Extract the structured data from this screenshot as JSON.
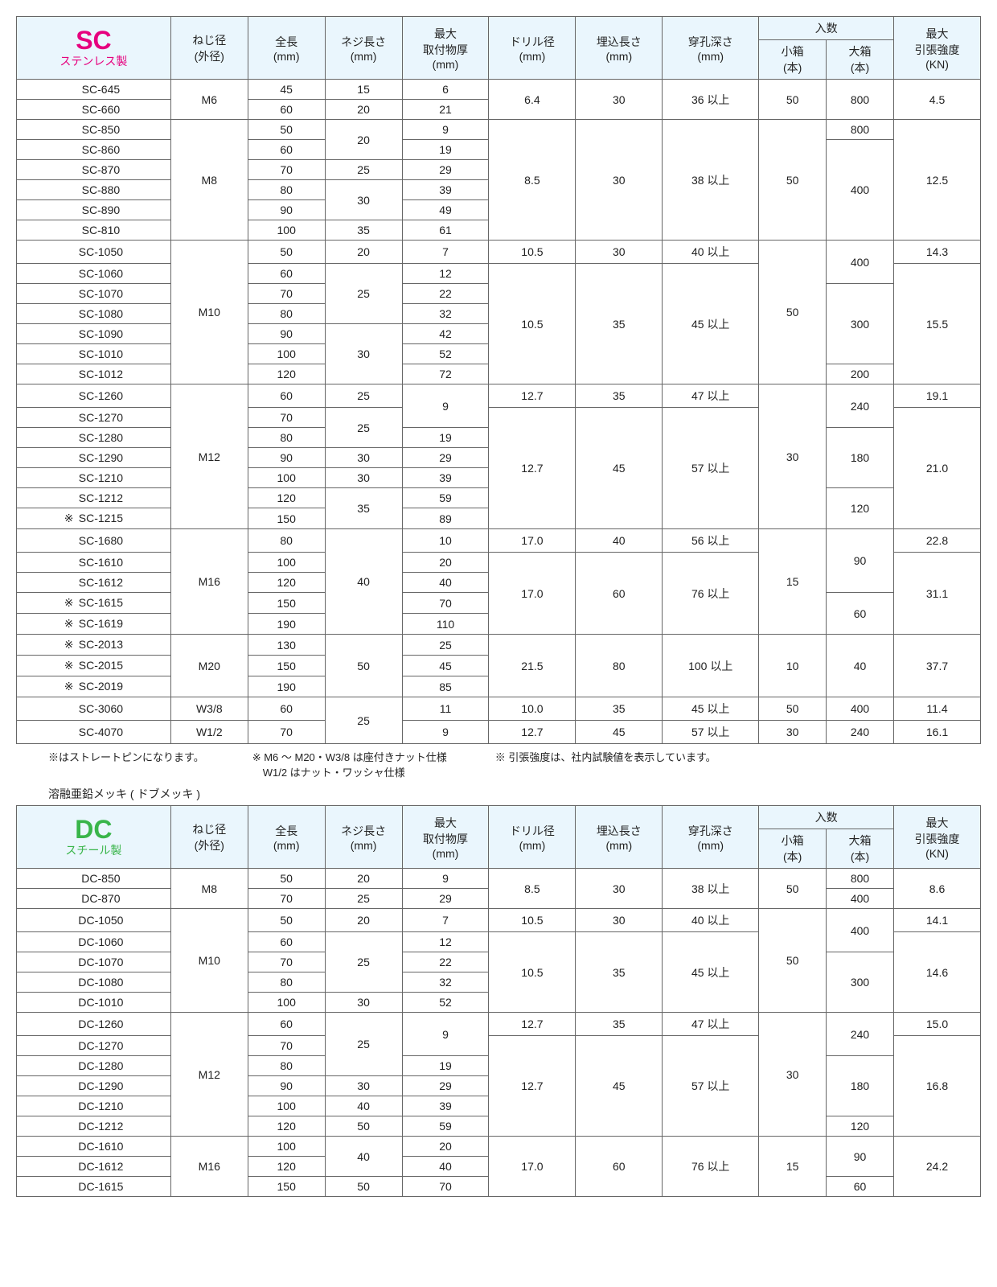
{
  "columns": {
    "thread": [
      "ねじ径",
      "(外径)"
    ],
    "length": [
      "全長",
      "(mm)"
    ],
    "threadLen": [
      "ネジ長さ",
      "(mm)"
    ],
    "maxMount": [
      "最大",
      "取付物厚",
      "(mm)"
    ],
    "drill": [
      "ドリル径",
      "(mm)"
    ],
    "embed": [
      "埋込長さ",
      "(mm)"
    ],
    "drillDepth": [
      "穿孔深さ",
      "(mm)"
    ],
    "qty": "入数",
    "small": [
      "小箱",
      "(本)"
    ],
    "large": [
      "大箱",
      "(本)"
    ],
    "tensile": [
      "最大",
      "引張強度",
      "(KN)"
    ]
  },
  "tables": [
    {
      "id": "sc",
      "seriesCode": "SC",
      "seriesSub": "ステンレス製",
      "threadGroups": [
        {
          "thread": "M6",
          "drill": "6.4",
          "embed": "30",
          "depth": "36 以上",
          "small": "50",
          "tensile": "4.5",
          "rows": [
            {
              "part": "SC-645",
              "len": "45",
              "tlen": "15",
              "max": "6",
              "large": "800"
            },
            {
              "part": "SC-660",
              "len": "60",
              "tlen": "20",
              "max": "21",
              "large": ""
            }
          ],
          "largeSpan": [
            [
              "800",
              2
            ]
          ]
        },
        {
          "thread": "M8",
          "drill": "8.5",
          "embed": "30",
          "depth": "38 以上",
          "small": "50",
          "tensile": "12.5",
          "rows": [
            {
              "part": "SC-850",
              "len": "50",
              "tlen": "20",
              "tlenSpan": 2,
              "max": "9"
            },
            {
              "part": "SC-860",
              "len": "60",
              "max": "19"
            },
            {
              "part": "SC-870",
              "len": "70",
              "tlen": "25",
              "max": "29"
            },
            {
              "part": "SC-880",
              "len": "80",
              "tlen": "30",
              "tlenSpan": 2,
              "max": "39"
            },
            {
              "part": "SC-890",
              "len": "90",
              "max": "49"
            },
            {
              "part": "SC-810",
              "len": "100",
              "tlen": "35",
              "max": "61"
            }
          ],
          "largeSpan": [
            [
              "800",
              1
            ],
            [
              "400",
              5
            ]
          ]
        },
        {
          "thread": "M10",
          "small": "50",
          "rows": [
            {
              "part": "SC-1050",
              "len": "50",
              "tlen": "20",
              "max": "7",
              "drill": "10.5",
              "embed": "30",
              "depth": "40 以上",
              "tensile": "14.3"
            },
            {
              "part": "SC-1060",
              "len": "60",
              "tlen": "25",
              "tlenSpan": 3,
              "max": "12",
              "drill": "10.5",
              "drillSpan": 6,
              "embed": "35",
              "embedSpan": 6,
              "depth": "45 以上",
              "depthSpan": 6,
              "tensile": "15.5",
              "tensileSpan": 6
            },
            {
              "part": "SC-1070",
              "len": "70",
              "max": "22"
            },
            {
              "part": "SC-1080",
              "len": "80",
              "max": "32"
            },
            {
              "part": "SC-1090",
              "len": "90",
              "tlen": "30",
              "tlenSpan": 3,
              "max": "42"
            },
            {
              "part": "SC-1010",
              "len": "100",
              "max": "52"
            },
            {
              "part": "SC-1012",
              "len": "120",
              "max": "72"
            }
          ],
          "largeSpan": [
            [
              "400",
              2
            ],
            [
              "300",
              4
            ],
            [
              "200",
              1
            ]
          ]
        },
        {
          "thread": "M12",
          "small": "30",
          "rows": [
            {
              "part": "SC-1260",
              "len": "60",
              "tlen": "25",
              "max": "9",
              "maxSpan": 2,
              "drill": "12.7",
              "embed": "35",
              "depth": "47 以上",
              "tensile": "19.1"
            },
            {
              "part": "SC-1270",
              "len": "70",
              "tlen": "25",
              "tlenSpan": 2,
              "drill": "12.7",
              "drillSpan": 6,
              "embed": "45",
              "embedSpan": 6,
              "depth": "57 以上",
              "depthSpan": 6,
              "tensile": "21.0",
              "tensileSpan": 6
            },
            {
              "part": "SC-1280",
              "len": "80",
              "max": "19"
            },
            {
              "part": "SC-1290",
              "len": "90",
              "tlen": "30",
              "max": "29"
            },
            {
              "part": "SC-1210",
              "len": "100",
              "tlen": "30",
              "max": "39"
            },
            {
              "part": "SC-1212",
              "len": "120",
              "tlen": "35",
              "tlenSpan": 2,
              "max": "59"
            },
            {
              "part": "SC-1215",
              "star": true,
              "len": "150",
              "max": "89"
            }
          ],
          "largeSpan": [
            [
              "240",
              2
            ],
            [
              "180",
              3
            ],
            [
              "120",
              2
            ]
          ]
        },
        {
          "thread": "M16",
          "small": "15",
          "rows": [
            {
              "part": "SC-1680",
              "len": "80",
              "tlen": "40",
              "tlenSpan": 5,
              "max": "10",
              "drill": "17.0",
              "embed": "40",
              "depth": "56 以上",
              "tensile": "22.8"
            },
            {
              "part": "SC-1610",
              "len": "100",
              "max": "20",
              "drill": "17.0",
              "drillSpan": 4,
              "embed": "60",
              "embedSpan": 4,
              "depth": "76 以上",
              "depthSpan": 4,
              "tensile": "31.1",
              "tensileSpan": 4
            },
            {
              "part": "SC-1612",
              "len": "120",
              "max": "40"
            },
            {
              "part": "SC-1615",
              "star": true,
              "len": "150",
              "max": "70"
            },
            {
              "part": "SC-1619",
              "star": true,
              "len": "190",
              "max": "110"
            }
          ],
          "largeSpan": [
            [
              "90",
              3
            ],
            [
              "60",
              2
            ]
          ]
        },
        {
          "thread": "M20",
          "drill": "21.5",
          "embed": "80",
          "depth": "100 以上",
          "small": "10",
          "tensile": "37.7",
          "rows": [
            {
              "part": "SC-2013",
              "star": true,
              "len": "130",
              "tlen": "50",
              "tlenSpan": 3,
              "max": "25"
            },
            {
              "part": "SC-2015",
              "star": true,
              "len": "150",
              "max": "45"
            },
            {
              "part": "SC-2019",
              "star": true,
              "len": "190",
              "max": "85"
            }
          ],
          "largeSpan": [
            [
              "40",
              3
            ]
          ]
        },
        {
          "thread": "W3/8",
          "drill": "10.0",
          "embed": "35",
          "depth": "45 以上",
          "small": "50",
          "tensile": "11.4",
          "rows": [
            {
              "part": "SC-3060",
              "len": "60",
              "tlen": "25",
              "tlenSpan": 2,
              "max": "11"
            }
          ],
          "largeSpan": [
            [
              "400",
              1
            ]
          ],
          "mergeNext": true
        },
        {
          "thread": "W1/2",
          "drill": "12.7",
          "embed": "45",
          "depth": "57 以上",
          "small": "30",
          "tensile": "16.1",
          "rows": [
            {
              "part": "SC-4070",
              "len": "70",
              "max": "9"
            }
          ],
          "largeSpan": [
            [
              "240",
              1
            ]
          ]
        }
      ],
      "footnotes": [
        "※はストレートピンになります。",
        "※ M6 ～ M20・W3/8 は座付きナット仕様\n　W1/2 はナット・ワッシャ仕様",
        "※ 引張強度は、社内試験値を表示しています。"
      ],
      "subheading": "溶融亜鉛メッキ ( ドブメッキ )"
    },
    {
      "id": "dc",
      "seriesCode": "DC",
      "seriesSub": "スチール製",
      "threadGroups": [
        {
          "thread": "M8",
          "drill": "8.5",
          "embed": "30",
          "depth": "38 以上",
          "small": "50",
          "tensile": "8.6",
          "rows": [
            {
              "part": "DC-850",
              "len": "50",
              "tlen": "20",
              "max": "9"
            },
            {
              "part": "DC-870",
              "len": "70",
              "tlen": "25",
              "max": "29"
            }
          ],
          "largeSpan": [
            [
              "800",
              1
            ],
            [
              "400",
              1
            ]
          ]
        },
        {
          "thread": "M10",
          "small": "50",
          "rows": [
            {
              "part": "DC-1050",
              "len": "50",
              "tlen": "20",
              "max": "7",
              "drill": "10.5",
              "embed": "30",
              "depth": "40 以上",
              "tensile": "14.1"
            },
            {
              "part": "DC-1060",
              "len": "60",
              "tlen": "25",
              "tlenSpan": 3,
              "max": "12",
              "drill": "10.5",
              "drillSpan": 4,
              "embed": "35",
              "embedSpan": 4,
              "depth": "45 以上",
              "depthSpan": 4,
              "tensile": "14.6",
              "tensileSpan": 4
            },
            {
              "part": "DC-1070",
              "len": "70",
              "max": "22"
            },
            {
              "part": "DC-1080",
              "len": "80",
              "max": "32"
            },
            {
              "part": "DC-1010",
              "len": "100",
              "tlen": "30",
              "max": "52"
            }
          ],
          "largeSpan": [
            [
              "400",
              2
            ],
            [
              "300",
              3
            ]
          ]
        },
        {
          "thread": "M12",
          "small": "30",
          "rows": [
            {
              "part": "DC-1260",
              "len": "60",
              "tlen": "25",
              "tlenSpan": 3,
              "max": "9",
              "maxSpan": 2,
              "drill": "12.7",
              "embed": "35",
              "depth": "47 以上",
              "tensile": "15.0"
            },
            {
              "part": "DC-1270",
              "len": "70",
              "drill": "12.7",
              "drillSpan": 5,
              "embed": "45",
              "embedSpan": 5,
              "depth": "57 以上",
              "depthSpan": 5,
              "tensile": "16.8",
              "tensileSpan": 5
            },
            {
              "part": "DC-1280",
              "len": "80",
              "max": "19"
            },
            {
              "part": "DC-1290",
              "len": "90",
              "tlen": "30",
              "max": "29"
            },
            {
              "part": "DC-1210",
              "len": "100",
              "tlen": "40",
              "max": "39"
            },
            {
              "part": "DC-1212",
              "len": "120",
              "tlen": "50",
              "max": "59"
            }
          ],
          "largeSpan": [
            [
              "240",
              2
            ],
            [
              "180",
              3
            ],
            [
              "120",
              1
            ]
          ]
        },
        {
          "thread": "M16",
          "drill": "17.0",
          "embed": "60",
          "depth": "76 以上",
          "small": "15",
          "tensile": "24.2",
          "rows": [
            {
              "part": "DC-1610",
              "len": "100",
              "tlen": "40",
              "tlenSpan": 2,
              "max": "20"
            },
            {
              "part": "DC-1612",
              "len": "120",
              "max": "40"
            },
            {
              "part": "DC-1615",
              "len": "150",
              "tlen": "50",
              "max": "70"
            }
          ],
          "largeSpan": [
            [
              "90",
              2
            ],
            [
              "60",
              1
            ]
          ]
        }
      ]
    }
  ]
}
